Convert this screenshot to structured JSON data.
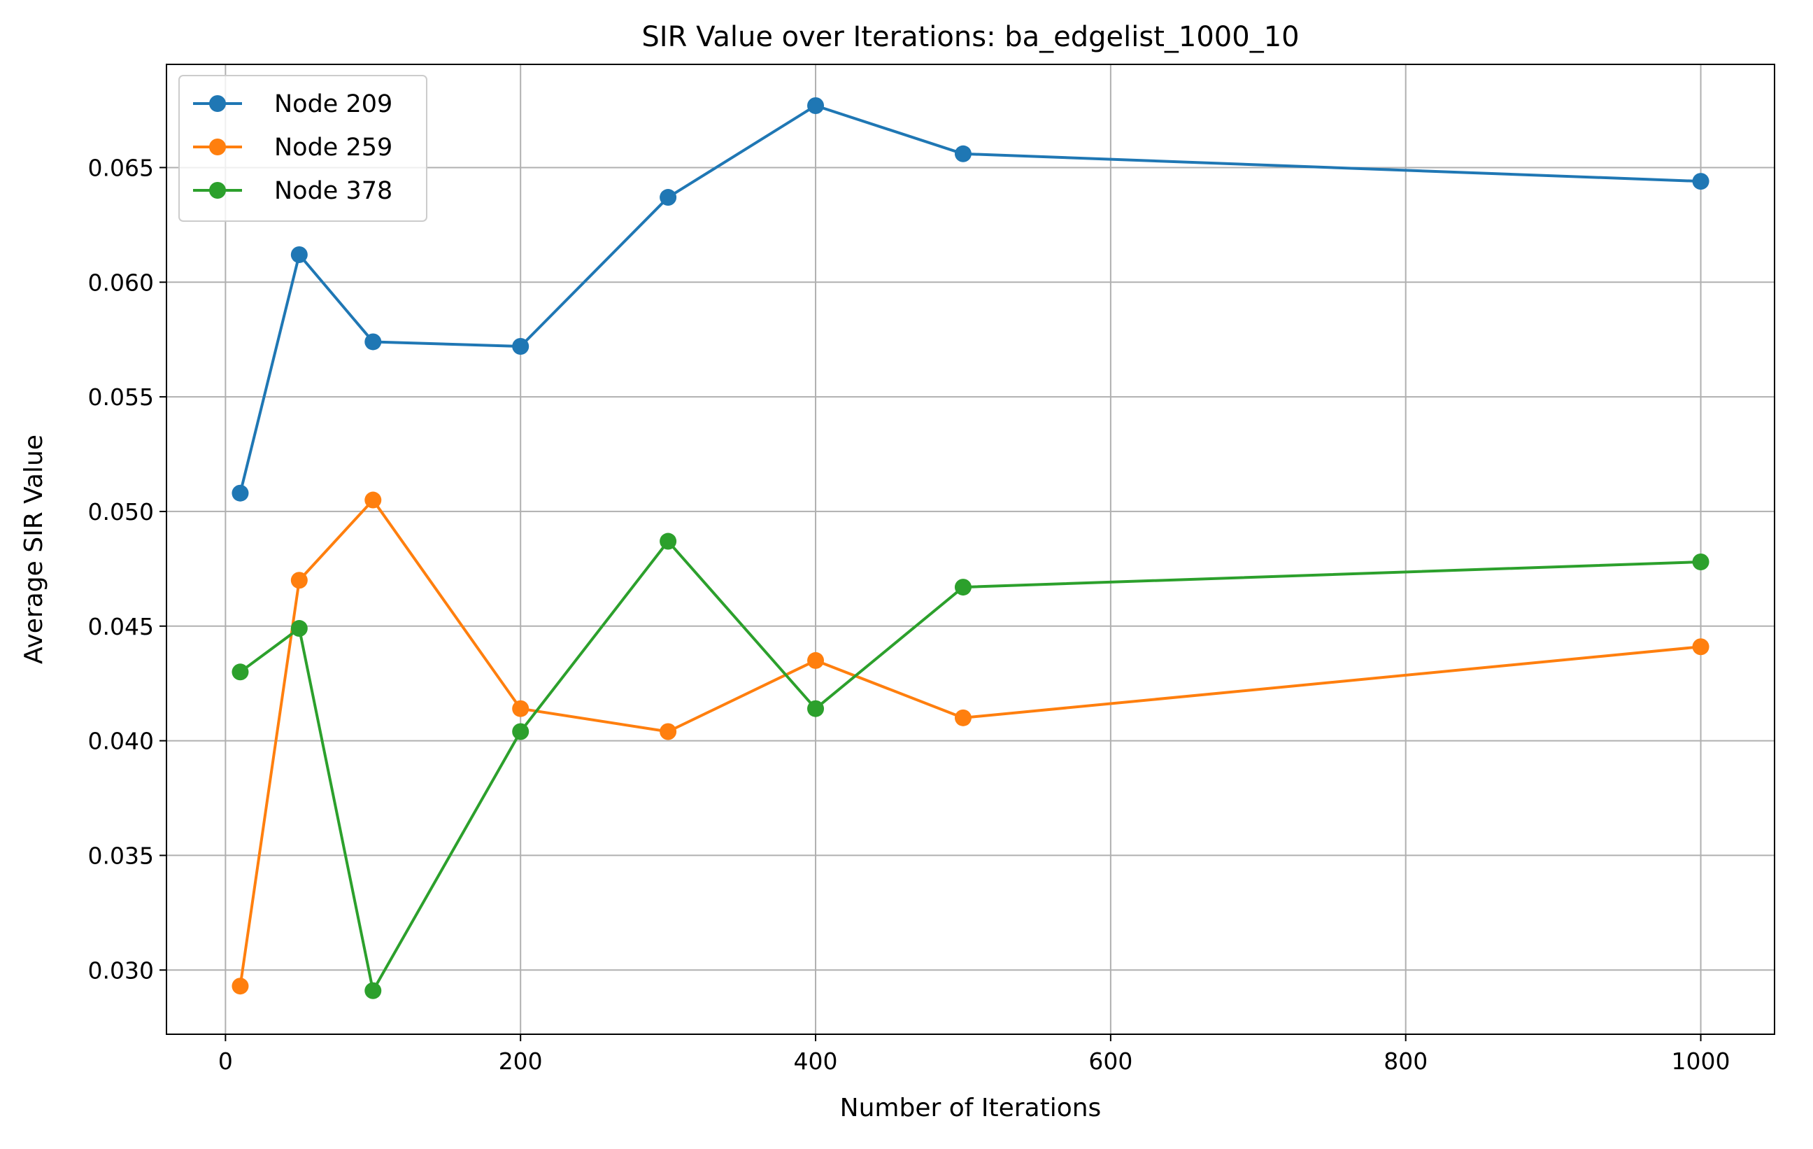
{
  "chart_data": {
    "type": "line",
    "title": "SIR Value over Iterations: ba_edgelist_1000_10",
    "xlabel": "Number of Iterations",
    "ylabel": "Average SIR Value",
    "xlim": [
      -40,
      1050
    ],
    "ylim": [
      0.0272,
      0.0695
    ],
    "x_ticks": [
      0,
      200,
      400,
      600,
      800,
      1000
    ],
    "y_ticks": [
      0.03,
      0.035,
      0.04,
      0.045,
      0.05,
      0.055,
      0.06,
      0.065
    ],
    "x_tick_labels": [
      "0",
      "200",
      "400",
      "600",
      "800",
      "1000"
    ],
    "y_tick_labels": [
      "0.030",
      "0.035",
      "0.040",
      "0.045",
      "0.050",
      "0.055",
      "0.060",
      "0.065"
    ],
    "grid": true,
    "legend_position": "top-left",
    "x": [
      10,
      50,
      100,
      200,
      300,
      400,
      500,
      1000
    ],
    "series": [
      {
        "name": "Node 209",
        "color": "#1f77b4",
        "marker": "circle",
        "values": [
          0.0508,
          0.0612,
          0.0574,
          0.0572,
          0.0637,
          0.0677,
          0.0656,
          0.0644
        ]
      },
      {
        "name": "Node 259",
        "color": "#ff7f0e",
        "marker": "circle",
        "values": [
          0.0293,
          0.047,
          0.0505,
          0.0414,
          0.0404,
          0.0435,
          0.041,
          0.0441
        ]
      },
      {
        "name": "Node 378",
        "color": "#2ca02c",
        "marker": "circle",
        "values": [
          0.043,
          0.0449,
          0.0291,
          0.0404,
          0.0487,
          0.0414,
          0.0467,
          0.0478
        ]
      }
    ]
  }
}
